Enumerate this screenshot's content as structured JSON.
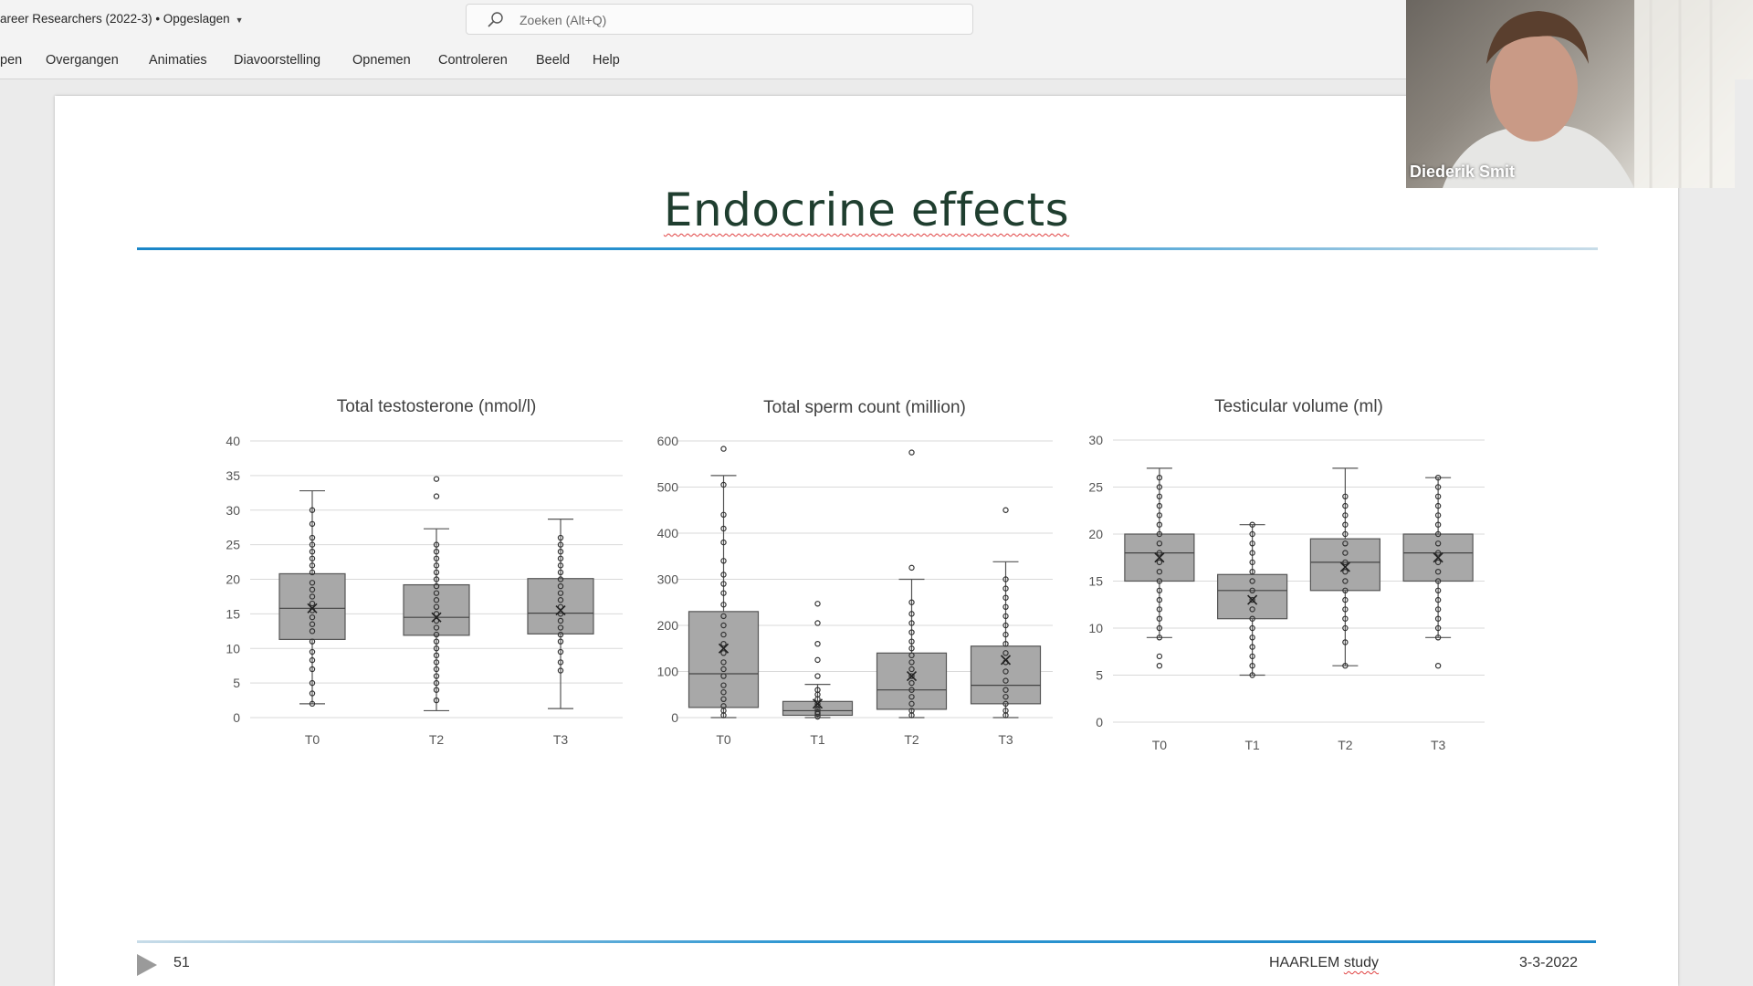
{
  "app": {
    "doc_title": "areer Researchers (2022-3) • Opgeslagen",
    "search_placeholder": "Zoeken (Alt+Q)"
  },
  "ribbon": {
    "tabs": [
      {
        "label": "pen"
      },
      {
        "label": "Overgangen"
      },
      {
        "label": "Animaties"
      },
      {
        "label": "Diavoorstelling"
      },
      {
        "label": "Opnemen"
      },
      {
        "label": "Controleren"
      },
      {
        "label": "Beeld"
      },
      {
        "label": "Help"
      }
    ]
  },
  "slide": {
    "title": "Endocrine effects",
    "number": "51",
    "footer_study_main": "HAARLEM",
    "footer_study_sub": "study",
    "footer_date": "3-3-2022"
  },
  "video": {
    "participant": "Diederik Smit"
  },
  "colors": {
    "box_fill": "#a8a8a8",
    "accent_line": "#1b86c8",
    "title": "#1f3e2f"
  },
  "icons": {
    "search": "search-icon",
    "play": "play-icon"
  },
  "chart_data": [
    {
      "type": "box",
      "title": "Total testosterone (nmol/l)",
      "categories": [
        "T0",
        "T2",
        "T3"
      ],
      "ylim": [
        0,
        40
      ],
      "yticks": [
        0,
        5,
        10,
        15,
        20,
        25,
        30,
        35,
        40
      ],
      "grid": true,
      "boxes": [
        {
          "min": 2,
          "q1": 11.3,
          "median": 15.8,
          "q3": 20.8,
          "max": 32.8,
          "mean": 15.8,
          "points": [
            2,
            3.5,
            5,
            7,
            8.3,
            9.5,
            11,
            12.5,
            13.5,
            14.5,
            15.5,
            16.5,
            17.5,
            18.5,
            19.5,
            21,
            22,
            23,
            24,
            25,
            26,
            28,
            30
          ]
        },
        {
          "min": 1,
          "q1": 11.9,
          "median": 14.5,
          "q3": 19.2,
          "max": 27.3,
          "mean": 14.5,
          "outliers": [
            32,
            34.5
          ],
          "points": [
            2.5,
            4,
            5,
            6,
            7,
            8,
            9,
            10,
            11,
            12,
            13,
            14,
            15,
            16,
            17,
            18,
            19,
            20,
            21,
            22,
            23,
            24,
            25
          ]
        },
        {
          "min": 1.3,
          "q1": 12.1,
          "median": 15.1,
          "q3": 20.1,
          "max": 28.7,
          "mean": 15.5,
          "points": [
            6.8,
            8,
            9.5,
            11,
            12,
            13,
            14,
            15,
            16,
            17,
            18,
            19,
            20,
            21,
            22,
            23,
            24,
            25,
            26
          ]
        }
      ]
    },
    {
      "type": "box",
      "title": "Total sperm count (million)",
      "categories": [
        "T0",
        "T1",
        "T2",
        "T3"
      ],
      "ylim": [
        0,
        600
      ],
      "yticks": [
        0,
        100,
        200,
        300,
        400,
        500,
        600
      ],
      "grid": true,
      "boxes": [
        {
          "min": 0,
          "q1": 22,
          "median": 95,
          "q3": 230,
          "max": 525,
          "mean": 150,
          "outliers": [
            583
          ],
          "points": [
            5,
            15,
            25,
            40,
            55,
            70,
            90,
            105,
            120,
            140,
            160,
            180,
            200,
            220,
            245,
            270,
            290,
            310,
            340,
            380,
            410,
            440,
            505
          ]
        },
        {
          "min": 0,
          "q1": 5,
          "median": 15,
          "q3": 35,
          "max": 72,
          "mean": 30,
          "outliers": [
            90,
            125,
            160,
            205,
            247
          ],
          "points": [
            2,
            8,
            12,
            18,
            25,
            30,
            40,
            50,
            60
          ]
        },
        {
          "min": 0,
          "q1": 18,
          "median": 60,
          "q3": 140,
          "max": 300,
          "mean": 90,
          "outliers": [
            325,
            575
          ],
          "points": [
            5,
            15,
            30,
            45,
            60,
            75,
            90,
            105,
            120,
            135,
            150,
            165,
            185,
            205,
            225,
            250
          ]
        },
        {
          "min": 0,
          "q1": 30,
          "median": 70,
          "q3": 155,
          "max": 338,
          "mean": 125,
          "outliers": [
            450
          ],
          "points": [
            5,
            15,
            30,
            45,
            60,
            80,
            100,
            120,
            140,
            160,
            180,
            200,
            220,
            240,
            260,
            280,
            300
          ]
        }
      ]
    },
    {
      "type": "box",
      "title": "Testicular volume (ml)",
      "categories": [
        "T0",
        "T1",
        "T2",
        "T3"
      ],
      "ylim": [
        0,
        30
      ],
      "yticks": [
        0,
        5,
        10,
        15,
        20,
        25,
        30
      ],
      "grid": true,
      "boxes": [
        {
          "min": 9,
          "q1": 15,
          "median": 18,
          "q3": 20,
          "max": 27,
          "mean": 17.5,
          "outliers": [
            6,
            7
          ],
          "points": [
            9,
            10,
            11,
            12,
            13,
            14,
            15,
            16,
            17,
            18,
            19,
            20,
            21,
            22,
            23,
            24,
            25,
            26
          ]
        },
        {
          "min": 5,
          "q1": 11,
          "median": 14,
          "q3": 15.7,
          "max": 21,
          "mean": 13,
          "points": [
            5,
            6,
            7,
            8,
            9,
            10,
            11,
            12,
            13,
            14,
            15,
            16,
            17,
            18,
            19,
            20,
            21
          ]
        },
        {
          "min": 6,
          "q1": 14,
          "median": 17,
          "q3": 19.5,
          "max": 27,
          "mean": 16.5,
          "points": [
            6,
            8.5,
            10,
            11,
            12,
            13,
            14,
            15,
            16,
            17,
            18,
            19,
            20,
            21,
            22,
            23,
            24
          ]
        },
        {
          "min": 9,
          "q1": 15,
          "median": 18,
          "q3": 20,
          "max": 26,
          "mean": 17.5,
          "outliers": [
            6
          ],
          "points": [
            9,
            10,
            11,
            12,
            13,
            14,
            15,
            16,
            17,
            18,
            19,
            20,
            21,
            22,
            23,
            24,
            25,
            26
          ]
        }
      ]
    }
  ]
}
